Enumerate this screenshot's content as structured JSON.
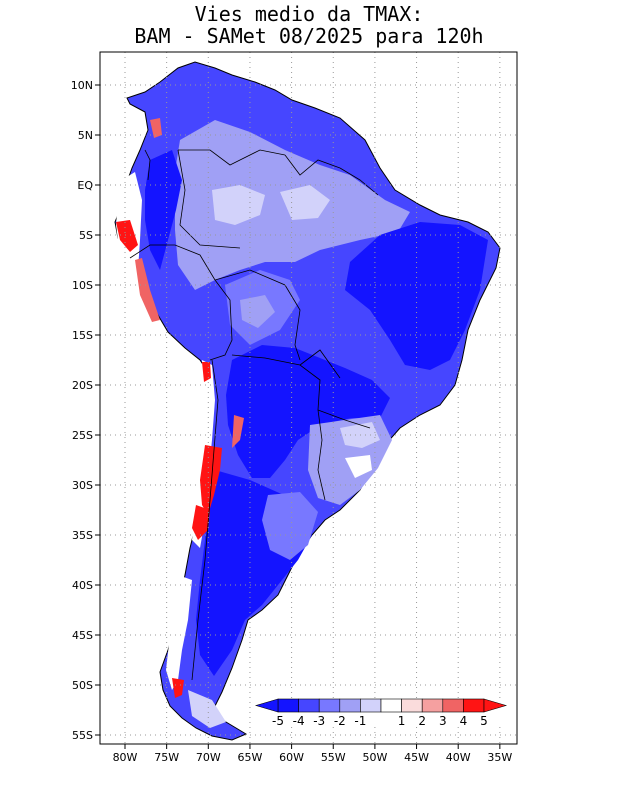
{
  "title": {
    "line1": "Vies medio da TMAX:",
    "line2": "BAM - SAMet 08/2025  para 120h"
  },
  "axes": {
    "x_ticks": [
      "80W",
      "75W",
      "70W",
      "65W",
      "60W",
      "55W",
      "50W",
      "45W",
      "40W",
      "35W"
    ],
    "y_ticks": [
      "10N",
      "5N",
      "EQ",
      "5S",
      "10S",
      "15S",
      "20S",
      "25S",
      "30S",
      "35S",
      "40S",
      "45S",
      "50S",
      "55S"
    ],
    "grid": "dotted"
  },
  "colorbar": {
    "labels": [
      "-5",
      "-4",
      "-3",
      "-2",
      "-1",
      "1",
      "2",
      "3",
      "4",
      "5"
    ],
    "colors": [
      "#1414ff",
      "#4646ff",
      "#7878ff",
      "#a0a0f5",
      "#d2d2fa",
      "#ffffff",
      "#fadcdc",
      "#f5a0a0",
      "#f06464",
      "#ff1414"
    ]
  },
  "map": {
    "region": "South America",
    "dominant_bias": "negative",
    "colors": {
      "strong_negative": "#1414ff",
      "negative": "#4646ff",
      "moderate_negative": "#7878ff",
      "weak_negative": "#a0a0f5",
      "slight_negative": "#d2d2fa",
      "neutral": "#ffffff",
      "positive": "#f06464",
      "strong_positive": "#ff1414"
    }
  }
}
